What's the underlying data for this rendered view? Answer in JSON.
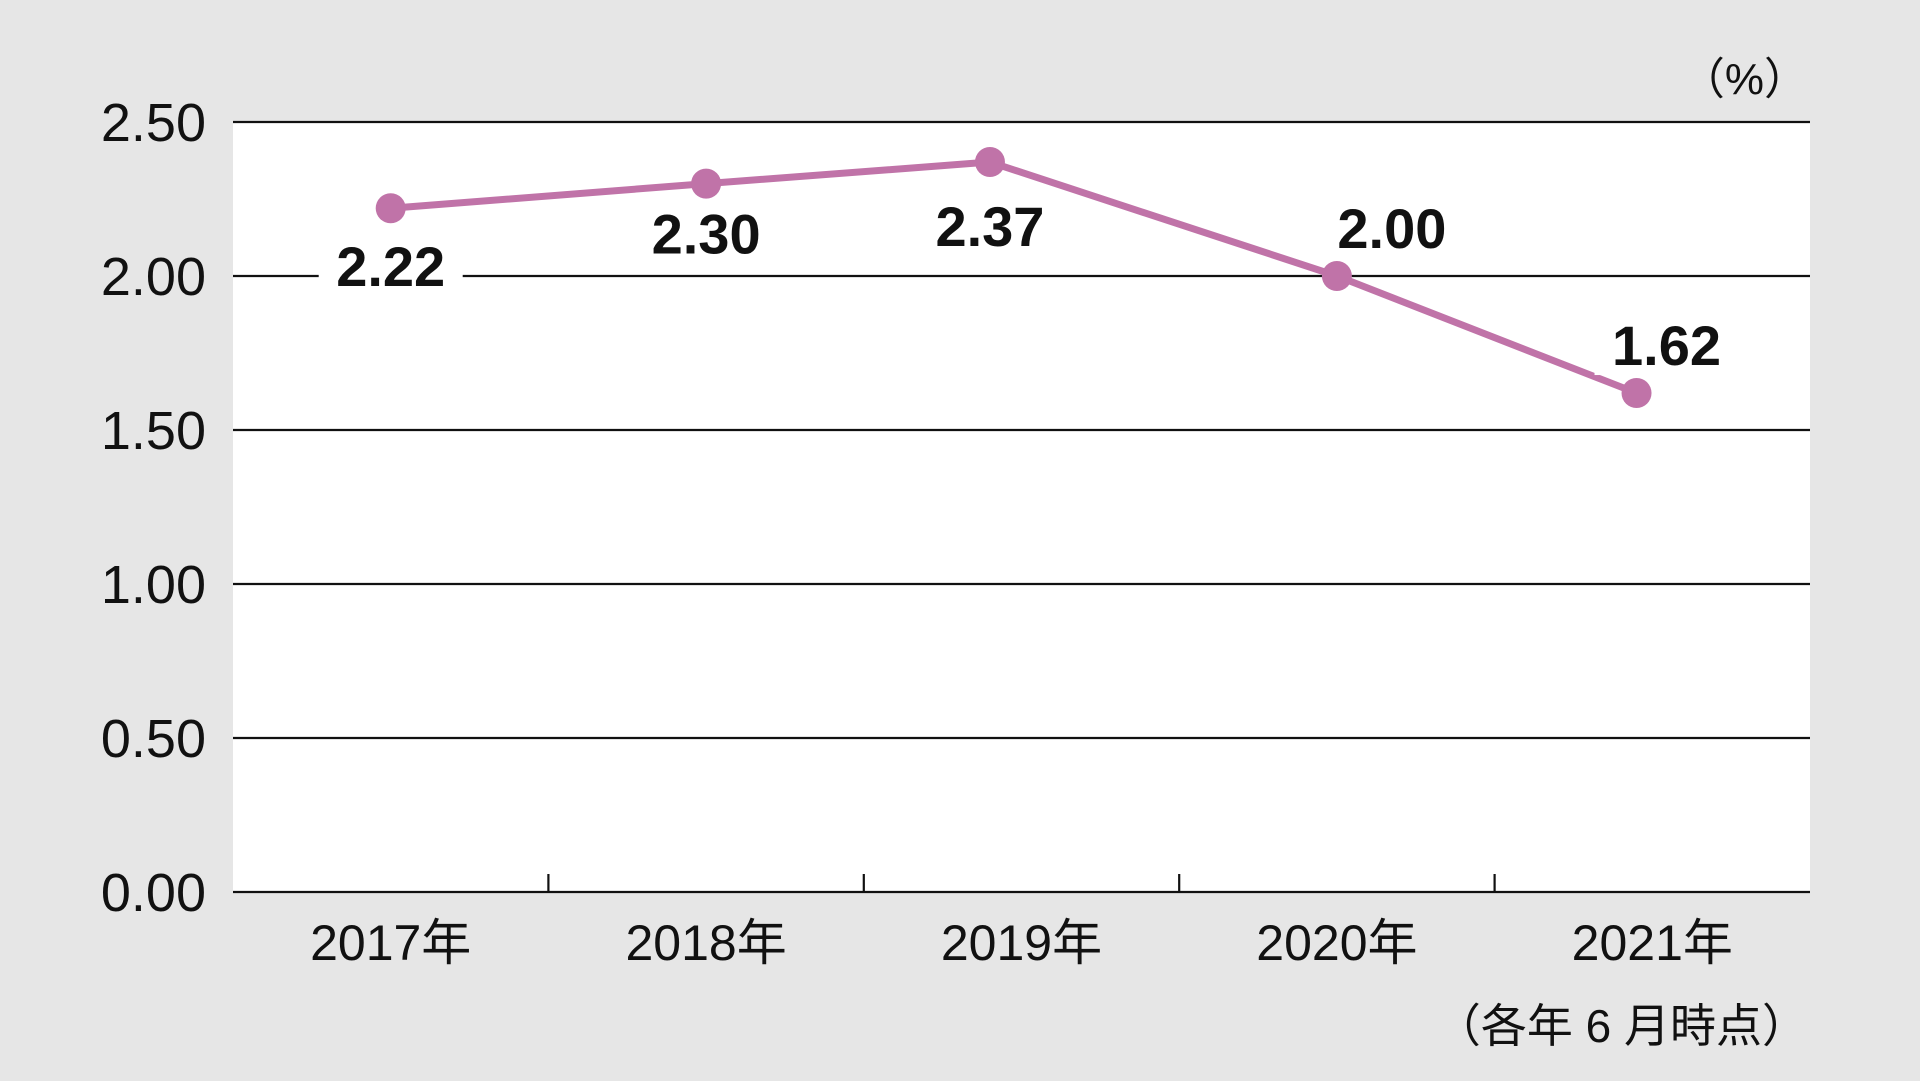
{
  "chart_data": {
    "type": "line",
    "categories": [
      "2017年",
      "2018年",
      "2019年",
      "2020年",
      "2021年"
    ],
    "series": [
      {
        "values": [
          2.22,
          2.3,
          2.37,
          2.0,
          1.62
        ],
        "data_labels": [
          "2.22",
          "2.30",
          "2.37",
          "2.00",
          "1.62"
        ],
        "color": "#c073a8"
      }
    ],
    "yticks": [
      "0.00",
      "0.50",
      "1.00",
      "1.50",
      "2.00",
      "2.50"
    ],
    "ylim": [
      0,
      2.5
    ],
    "unit": "（%）",
    "note": "（各年 6 月時点）",
    "grid": true,
    "background_color": "#e6e6e6",
    "plot_background_color": "#ffffff"
  }
}
